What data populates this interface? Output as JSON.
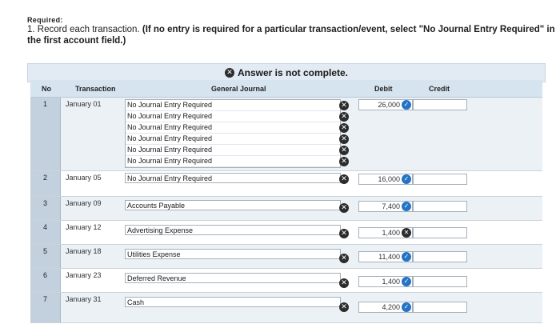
{
  "header": {
    "required_label": "Required:"
  },
  "instructions": {
    "number": "1.",
    "text": "Record each transaction.",
    "bold_text": "(If no entry is required for a particular transaction/event, select \"No Journal Entry Required\" in the first account field.)"
  },
  "banner": {
    "text": "Answer is not complete.",
    "icon": "x-circle-icon"
  },
  "table": {
    "columns": {
      "no": "No",
      "transaction": "Transaction",
      "general_journal": "General Journal",
      "debit": "Debit",
      "credit": "Credit"
    },
    "rows": [
      {
        "no": "1",
        "date": "January 01",
        "accounts": [
          "No Journal Entry Required",
          "No Journal Entry Required",
          "No Journal Entry Required",
          "No Journal Entry Required",
          "No Journal Entry Required",
          "No Journal Entry Required"
        ],
        "marks": [
          "x",
          "x",
          "x",
          "x",
          "x",
          "x"
        ],
        "debit": "26,000",
        "debit_status": "check"
      },
      {
        "no": "2",
        "date": "January 05",
        "account": "No Journal Entry Required",
        "mark": "x",
        "debit": "16,000",
        "debit_status": "check"
      },
      {
        "no": "3",
        "date": "January 09",
        "account": "Accounts Payable",
        "mark": "x",
        "debit": "7,400",
        "debit_status": "check"
      },
      {
        "no": "4",
        "date": "January 12",
        "account": "Advertising Expense",
        "mark": "x",
        "debit": "1,400",
        "debit_status": "x"
      },
      {
        "no": "5",
        "date": "January 18",
        "account": "Utilities Expense",
        "mark": "x",
        "debit": "11,400",
        "debit_status": "check"
      },
      {
        "no": "6",
        "date": "January 23",
        "account": "Deferred Revenue",
        "mark": "x",
        "debit": "1,400",
        "debit_status": "check"
      },
      {
        "no": "7",
        "date": "January 31",
        "account": "Cash",
        "mark": "x",
        "debit": "4,200",
        "debit_status": "check"
      }
    ]
  },
  "colors": {
    "banner_bg": "#e2ebf3",
    "header_bg": "#d6e4f0",
    "check_blue": "#2474c6",
    "x_dark": "#2c2c2c"
  }
}
